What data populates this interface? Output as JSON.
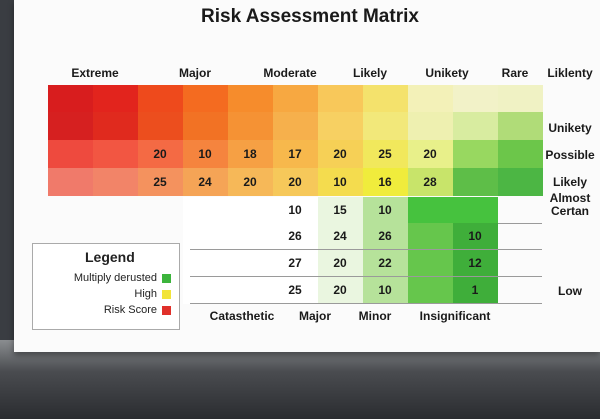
{
  "title": "Risk Assessment Matrix",
  "column_headers": [
    "Extreme",
    "Major",
    "Moderate",
    "Likely",
    "Unikety",
    "Rare",
    "Liklenty"
  ],
  "row_labels": [
    "Unikety",
    "Possible",
    "Likely",
    "Almost Certan",
    "Low"
  ],
  "upper_rows": [
    [
      null,
      null,
      null,
      null,
      null,
      null,
      null,
      null,
      null,
      null,
      null
    ],
    [
      null,
      null,
      null,
      null,
      null,
      null,
      null,
      null,
      null,
      null,
      null
    ],
    [
      null,
      null,
      20,
      10,
      18,
      17,
      20,
      25,
      20,
      null,
      null
    ],
    [
      null,
      null,
      25,
      24,
      20,
      20,
      10,
      16,
      28,
      null,
      null
    ]
  ],
  "lower_rows": [
    [
      null,
      null,
      10,
      15,
      10,
      null,
      null
    ],
    [
      null,
      null,
      26,
      24,
      26,
      null,
      10
    ],
    [
      null,
      null,
      27,
      20,
      22,
      null,
      12
    ],
    [
      null,
      null,
      25,
      20,
      10,
      null,
      1
    ]
  ],
  "bottom_labels": [
    "Catasthetic",
    "Major",
    "Minor",
    "Insignificant"
  ],
  "legend": {
    "title": "Legend",
    "items": [
      {
        "label": "Multiply derusted",
        "color": "#3cb43c"
      },
      {
        "label": "High",
        "color": "#f2e43a"
      },
      {
        "label": "Risk Score",
        "color": "#e0302a"
      }
    ]
  }
}
